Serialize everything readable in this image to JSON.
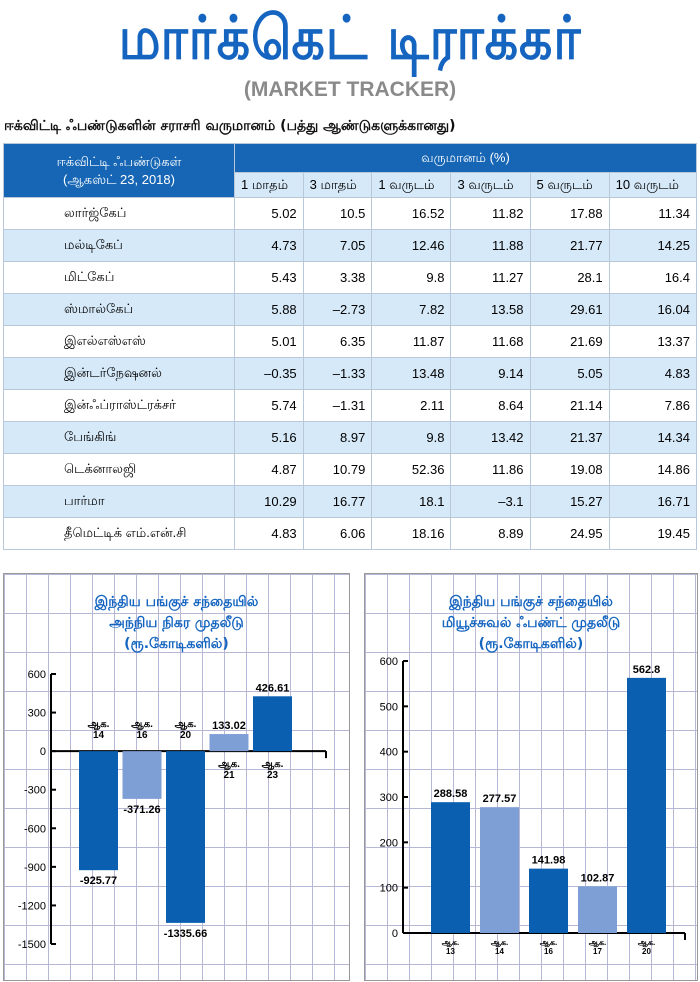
{
  "header": {
    "title": "மார்க்கெட் டிராக்கர்",
    "subtitle": "(MARKET TRACKER)"
  },
  "table": {
    "heading": "ஈக்விட்டி ஃபண்டுகளின் சராசரி வருமானம் (பத்து ஆண்டுகளுக்கானது)",
    "col0_line1": "ஈக்விட்டி ஃபண்டுகள்",
    "col0_line2": "(ஆகஸ்ட் 23, 2018)",
    "group_header": "வருமானம் (%)",
    "columns": [
      "1 மாதம்",
      "3 மாதம்",
      "1 வருடம்",
      "3 வருடம்",
      "5 வருடம்",
      "10 வருடம்"
    ],
    "rows": [
      {
        "name": "லார்ஜ்கேப்",
        "values": [
          "5.02",
          "10.5",
          "16.52",
          "11.82",
          "17.88",
          "11.34"
        ]
      },
      {
        "name": "மல்டிகேப்",
        "values": [
          "4.73",
          "7.05",
          "12.46",
          "11.88",
          "21.77",
          "14.25"
        ]
      },
      {
        "name": "மிட்கேப்",
        "values": [
          "5.43",
          "3.38",
          "9.8",
          "11.27",
          "28.1",
          "16.4"
        ]
      },
      {
        "name": "ஸ்மால்கேப்",
        "values": [
          "5.88",
          "–2.73",
          "7.82",
          "13.58",
          "29.61",
          "16.04"
        ]
      },
      {
        "name": "இஎல்எஸ்எஸ்",
        "values": [
          "5.01",
          "6.35",
          "11.87",
          "11.68",
          "21.69",
          "13.37"
        ]
      },
      {
        "name": "இன்டர்நேஷனல்",
        "values": [
          "–0.35",
          "–1.33",
          "13.48",
          "9.14",
          "5.05",
          "4.83"
        ]
      },
      {
        "name": "இன்ஃப்ராஸ்ட்ரக்சர்",
        "values": [
          "5.74",
          "–1.31",
          "2.11",
          "8.64",
          "21.14",
          "7.86"
        ]
      },
      {
        "name": "பேங்கிங்",
        "values": [
          "5.16",
          "8.97",
          "9.8",
          "13.42",
          "21.37",
          "14.34"
        ]
      },
      {
        "name": "டெக்னாலஜி",
        "values": [
          "4.87",
          "10.79",
          "52.36",
          "11.86",
          "19.08",
          "14.86"
        ]
      },
      {
        "name": "பார்மா",
        "values": [
          "10.29",
          "16.77",
          "18.1",
          "–3.1",
          "15.27",
          "16.71"
        ]
      },
      {
        "name": "தீமெட்டிக் எம்.என்.சி",
        "values": [
          "4.83",
          "6.06",
          "18.16",
          "8.89",
          "24.95",
          "19.45"
        ]
      }
    ]
  },
  "chart_data": [
    {
      "type": "bar",
      "title_lines": [
        "இந்திய பங்குச் சந்தையில்",
        "அந்நிய நிகர முதலீடு",
        "(ரூ.கோடிகளில்)"
      ],
      "categories": [
        "ஆக. 14",
        "ஆக. 16",
        "ஆக. 20",
        "ஆக. 21",
        "ஆக. 23"
      ],
      "values": [
        -925.77,
        -371.26,
        -1335.66,
        133.02,
        426.61
      ],
      "value_labels": [
        "-925.77",
        "-371.26",
        "-1335.66",
        "133.02",
        "426.61"
      ],
      "yticks": [
        "600",
        "300",
        "0",
        "-300",
        "-600",
        "-900",
        "-1200",
        "-1500"
      ],
      "ylim": [
        -1500,
        600
      ],
      "grid": true,
      "colors": [
        "#0b5fb0",
        "#7e9fd6"
      ]
    },
    {
      "type": "bar",
      "title_lines": [
        "இந்திய பங்குச் சந்தையில்",
        "மியூச்சுவல் ஃபண்ட் முதலீடு",
        "(ரூ.கோடிகளில்)"
      ],
      "categories": [
        "ஆக. 13",
        "ஆக. 14",
        "ஆக. 16",
        "ஆக. 17",
        "ஆக. 20"
      ],
      "values": [
        288.58,
        277.57,
        141.98,
        102.87,
        562.8
      ],
      "value_labels": [
        "288.58",
        "277.57",
        "141.98",
        "102.87",
        "562.8"
      ],
      "yticks": [
        "600",
        "500",
        "400",
        "300",
        "200",
        "100",
        "0"
      ],
      "ylim": [
        0,
        600
      ],
      "grid": true,
      "colors": [
        "#0b5fb0",
        "#7e9fd6"
      ]
    }
  ]
}
